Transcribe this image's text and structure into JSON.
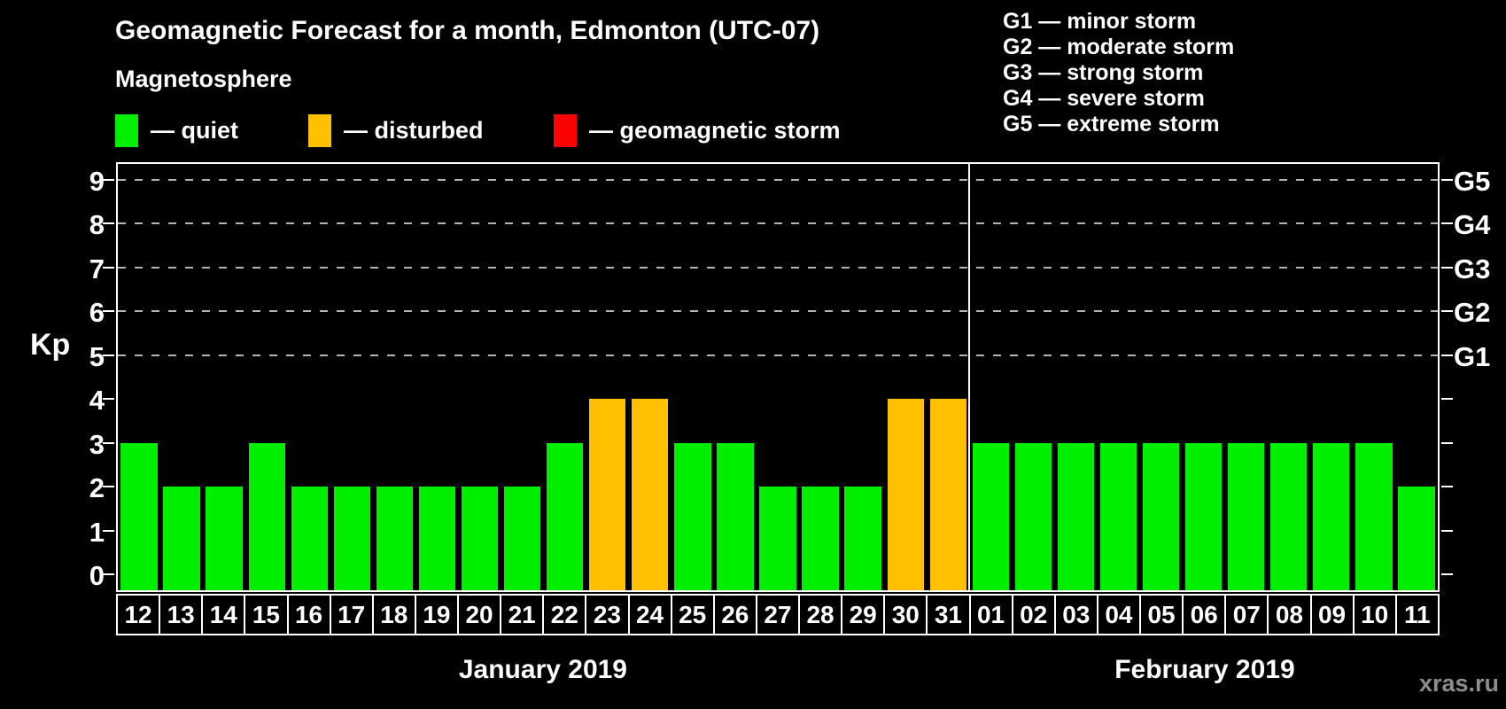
{
  "title": "Geomagnetic Forecast for a month, Edmonton (UTC-07)",
  "legend": {
    "heading": "Magnetosphere",
    "items": [
      {
        "label": "— quiet",
        "color": "#00ee00"
      },
      {
        "label": "— disturbed",
        "color": "#ffc000"
      },
      {
        "label": "— geomagnetic storm",
        "color": "#ff0000"
      }
    ]
  },
  "g_legend": [
    "G1 — minor storm",
    "G2 — moderate storm",
    "G3 — strong storm",
    "G4 — severe storm",
    "G5 — extreme storm"
  ],
  "watermark": "xras.ru",
  "chart_data": {
    "type": "bar",
    "ylabel": "Kp",
    "ylim": [
      0,
      9
    ],
    "y_ticks": [
      0,
      1,
      2,
      3,
      4,
      5,
      6,
      7,
      8,
      9
    ],
    "gridline_kp": [
      5,
      6,
      7,
      8,
      9
    ],
    "grid": "dashed horizontal at G-storm levels only",
    "legend_position": "top",
    "g_levels": [
      {
        "label": "G1",
        "kp": 5
      },
      {
        "label": "G2",
        "kp": 6
      },
      {
        "label": "G3",
        "kp": 7
      },
      {
        "label": "G4",
        "kp": 8
      },
      {
        "label": "G5",
        "kp": 9
      }
    ],
    "colors": {
      "quiet": "#00ee00",
      "disturbed": "#ffc000",
      "storm": "#ff0000"
    },
    "months": [
      {
        "label": "January 2019",
        "days": [
          {
            "day": "12",
            "kp": 3,
            "status": "quiet"
          },
          {
            "day": "13",
            "kp": 2,
            "status": "quiet"
          },
          {
            "day": "14",
            "kp": 2,
            "status": "quiet"
          },
          {
            "day": "15",
            "kp": 3,
            "status": "quiet"
          },
          {
            "day": "16",
            "kp": 2,
            "status": "quiet"
          },
          {
            "day": "17",
            "kp": 2,
            "status": "quiet"
          },
          {
            "day": "18",
            "kp": 2,
            "status": "quiet"
          },
          {
            "day": "19",
            "kp": 2,
            "status": "quiet"
          },
          {
            "day": "20",
            "kp": 2,
            "status": "quiet"
          },
          {
            "day": "21",
            "kp": 2,
            "status": "quiet"
          },
          {
            "day": "22",
            "kp": 3,
            "status": "quiet"
          },
          {
            "day": "23",
            "kp": 4,
            "status": "disturbed"
          },
          {
            "day": "24",
            "kp": 4,
            "status": "disturbed"
          },
          {
            "day": "25",
            "kp": 3,
            "status": "quiet"
          },
          {
            "day": "26",
            "kp": 3,
            "status": "quiet"
          },
          {
            "day": "27",
            "kp": 2,
            "status": "quiet"
          },
          {
            "day": "28",
            "kp": 2,
            "status": "quiet"
          },
          {
            "day": "29",
            "kp": 2,
            "status": "quiet"
          },
          {
            "day": "30",
            "kp": 4,
            "status": "disturbed"
          },
          {
            "day": "31",
            "kp": 4,
            "status": "disturbed"
          }
        ]
      },
      {
        "label": "February 2019",
        "days": [
          {
            "day": "01",
            "kp": 3,
            "status": "quiet"
          },
          {
            "day": "02",
            "kp": 3,
            "status": "quiet"
          },
          {
            "day": "03",
            "kp": 3,
            "status": "quiet"
          },
          {
            "day": "04",
            "kp": 3,
            "status": "quiet"
          },
          {
            "day": "05",
            "kp": 3,
            "status": "quiet"
          },
          {
            "day": "06",
            "kp": 3,
            "status": "quiet"
          },
          {
            "day": "07",
            "kp": 3,
            "status": "quiet"
          },
          {
            "day": "08",
            "kp": 3,
            "status": "quiet"
          },
          {
            "day": "09",
            "kp": 3,
            "status": "quiet"
          },
          {
            "day": "10",
            "kp": 3,
            "status": "quiet"
          },
          {
            "day": "11",
            "kp": 2,
            "status": "quiet"
          }
        ]
      }
    ]
  }
}
